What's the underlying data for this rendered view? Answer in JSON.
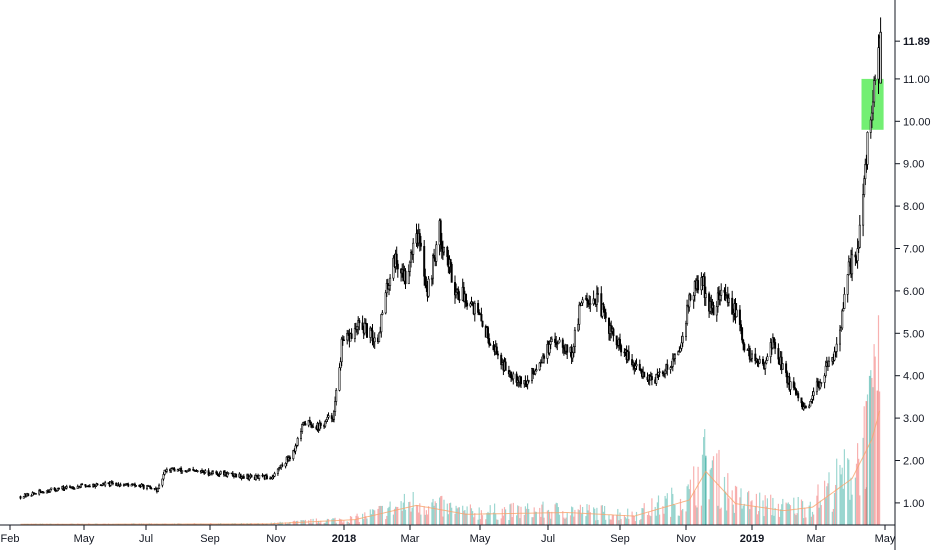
{
  "chart_data": {
    "type": "candlestick",
    "y_axis_ticks": [
      "1.00",
      "2.00",
      "3.00",
      "4.00",
      "5.00",
      "6.00",
      "7.00",
      "8.00",
      "9.00",
      "10.00",
      "11.00"
    ],
    "last_price_label": "11.89",
    "last_price": 11.89,
    "x_axis_ticks": [
      {
        "label": "Feb",
        "bold": false
      },
      {
        "label": "May",
        "bold": false
      },
      {
        "label": "Jul",
        "bold": false
      },
      {
        "label": "Sep",
        "bold": false
      },
      {
        "label": "Nov",
        "bold": false
      },
      {
        "label": "2018",
        "bold": true
      },
      {
        "label": "Mar",
        "bold": false
      },
      {
        "label": "May",
        "bold": false
      },
      {
        "label": "Jul",
        "bold": false
      },
      {
        "label": "Sep",
        "bold": false
      },
      {
        "label": "Nov",
        "bold": false
      },
      {
        "label": "2019",
        "bold": true
      },
      {
        "label": "Mar",
        "bold": false
      },
      {
        "label": "May",
        "bold": false
      }
    ],
    "price_path": [
      [
        "2017-01-20",
        1.15
      ],
      [
        "2017-02-15",
        1.3
      ],
      [
        "2017-03-15",
        1.4
      ],
      [
        "2017-04-15",
        1.45
      ],
      [
        "2017-05-10",
        1.4
      ],
      [
        "2017-05-25",
        1.3
      ],
      [
        "2017-06-01",
        1.8
      ],
      [
        "2017-06-20",
        1.75
      ],
      [
        "2017-07-20",
        1.7
      ],
      [
        "2017-08-20",
        1.6
      ],
      [
        "2017-09-05",
        1.6
      ],
      [
        "2017-09-25",
        2.2
      ],
      [
        "2017-10-05",
        2.9
      ],
      [
        "2017-10-20",
        2.8
      ],
      [
        "2017-11-01",
        3.1
      ],
      [
        "2017-11-08",
        4.7
      ],
      [
        "2017-11-25",
        5.2
      ],
      [
        "2017-12-10",
        4.8
      ],
      [
        "2017-12-25",
        6.8
      ],
      [
        "2018-01-05",
        6.3
      ],
      [
        "2018-01-15",
        7.5
      ],
      [
        "2018-01-25",
        6.0
      ],
      [
        "2018-02-05",
        7.4
      ],
      [
        "2018-02-20",
        6.0
      ],
      [
        "2018-03-05",
        5.8
      ],
      [
        "2018-03-20",
        5.0
      ],
      [
        "2018-04-05",
        4.2
      ],
      [
        "2018-04-25",
        3.8
      ],
      [
        "2018-05-10",
        4.5
      ],
      [
        "2018-05-25",
        4.9
      ],
      [
        "2018-06-05",
        4.5
      ],
      [
        "2018-06-15",
        5.9
      ],
      [
        "2018-06-28",
        5.8
      ],
      [
        "2018-07-15",
        4.8
      ],
      [
        "2018-08-01",
        4.2
      ],
      [
        "2018-08-20",
        3.9
      ],
      [
        "2018-09-10",
        4.5
      ],
      [
        "2018-09-20",
        5.8
      ],
      [
        "2018-10-01",
        6.3
      ],
      [
        "2018-10-10",
        5.5
      ],
      [
        "2018-10-20",
        6.0
      ],
      [
        "2018-11-01",
        5.5
      ],
      [
        "2018-11-10",
        4.6
      ],
      [
        "2018-11-25",
        4.2
      ],
      [
        "2018-12-05",
        4.8
      ],
      [
        "2018-12-20",
        3.8
      ],
      [
        "2019-01-05",
        3.1
      ],
      [
        "2019-01-15",
        3.8
      ],
      [
        "2019-01-28",
        4.4
      ],
      [
        "2019-02-05",
        5.2
      ],
      [
        "2019-02-12",
        6.5
      ],
      [
        "2019-02-20",
        7.0
      ],
      [
        "2019-02-26",
        8.4
      ],
      [
        "2019-03-03",
        10.2
      ],
      [
        "2019-03-08",
        10.8
      ],
      [
        "2019-03-12",
        11.6
      ]
    ],
    "volume_profile": [
      [
        "2017-01-20",
        0.02
      ],
      [
        "2017-09-01",
        0.03
      ],
      [
        "2017-11-20",
        0.15
      ],
      [
        "2018-01-15",
        0.55
      ],
      [
        "2018-03-01",
        0.3
      ],
      [
        "2018-06-01",
        0.35
      ],
      [
        "2018-08-01",
        0.25
      ],
      [
        "2018-09-20",
        0.7
      ],
      [
        "2018-10-05",
        1.5
      ],
      [
        "2018-11-01",
        0.6
      ],
      [
        "2018-12-15",
        0.4
      ],
      [
        "2019-01-10",
        0.5
      ],
      [
        "2019-02-15",
        1.3
      ],
      [
        "2019-03-05",
        2.4
      ],
      [
        "2019-03-12",
        3.2
      ]
    ],
    "volume_spikes": [
      [
        "2018-10-05",
        1.65
      ],
      [
        "2019-02-28",
        2.95
      ],
      [
        "2019-03-03",
        3.55
      ],
      [
        "2019-03-10",
        3.2
      ]
    ],
    "highlight_box": {
      "from": "2019-03-01",
      "to": "2019-03-12",
      "low": 9.8,
      "high": 11.0,
      "color": "#00e100"
    },
    "colors": {
      "up": "#26a69a",
      "down": "#ef5350",
      "candle": "#000000",
      "ma_line": "#f7a46b"
    }
  }
}
